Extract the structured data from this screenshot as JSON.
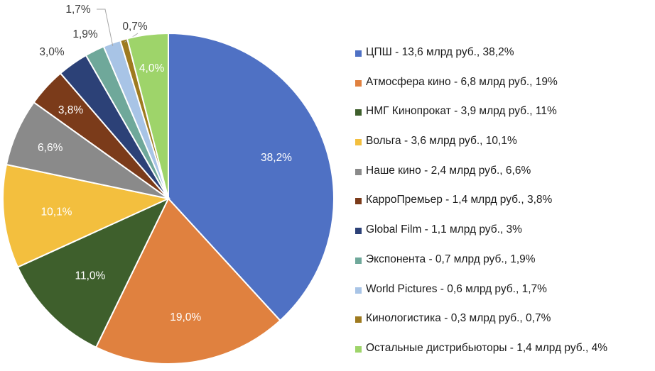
{
  "chart_data": {
    "type": "pie",
    "title": "",
    "start_angle_deg": 0,
    "direction": "clockwise",
    "legend_position": "right",
    "slices": [
      {
        "legend": "ЦПШ - 13,6 млрд руб., 38,2%",
        "value": 38.2,
        "label": "38,2%",
        "color": "#4F71C4"
      },
      {
        "legend": "Атмосфера кино - 6,8 млрд руб., 19%",
        "value": 19.0,
        "label": "19,0%",
        "color": "#E0813F"
      },
      {
        "legend": "НМГ Кинопрокат - 3,9 млрд руб., 11%",
        "value": 11.0,
        "label": "11,0%",
        "color": "#3E5F2C"
      },
      {
        "legend": "Вольга - 3,6 млрд руб., 10,1%",
        "value": 10.1,
        "label": "10,1%",
        "color": "#F3BF3E"
      },
      {
        "legend": "Наше кино - 2,4 млрд руб., 6,6%",
        "value": 6.6,
        "label": "6,6%",
        "color": "#8A8A8A"
      },
      {
        "legend": "КарроПремьер - 1,4 млрд руб., 3,8%",
        "value": 3.8,
        "label": "3,8%",
        "color": "#7B3B1A"
      },
      {
        "legend": "Global Film - 1,1 млрд руб., 3%",
        "value": 3.0,
        "label": "3,0%",
        "color": "#2C4177"
      },
      {
        "legend": "Экспонента - 0,7 млрд руб., 1,9%",
        "value": 1.9,
        "label": "1,9%",
        "color": "#6FA89A"
      },
      {
        "legend": "World Pictures - 0,6 млрд руб., 1,7%",
        "value": 1.7,
        "label": "1,7%",
        "color": "#A8C4E6"
      },
      {
        "legend": "Кинологистика - 0,3 млрд руб., 0,7%",
        "value": 0.7,
        "label": "0,7%",
        "color": "#9E7A1F"
      },
      {
        "legend": "Остальные дистрибьюторы - 1,4 млрд руб., 4%",
        "value": 4.0,
        "label": "4,0%",
        "color": "#9ED46A"
      }
    ]
  }
}
